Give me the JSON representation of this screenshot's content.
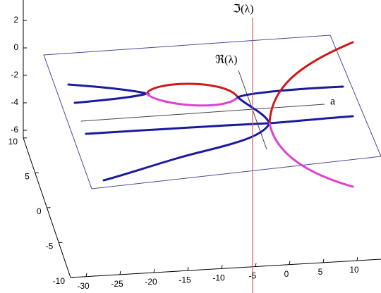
{
  "chart_data": {
    "type": "line3d",
    "zticks": [
      2,
      0,
      -2,
      -4,
      -6
    ],
    "yticks": [
      10,
      5,
      0,
      -5,
      -10
    ],
    "xticks": [
      -30,
      -25,
      -20,
      -15,
      -10,
      -5,
      0,
      5,
      10
    ],
    "annotations": [
      "ℑ(λ)",
      "ℜ(λ)",
      "a"
    ]
  }
}
